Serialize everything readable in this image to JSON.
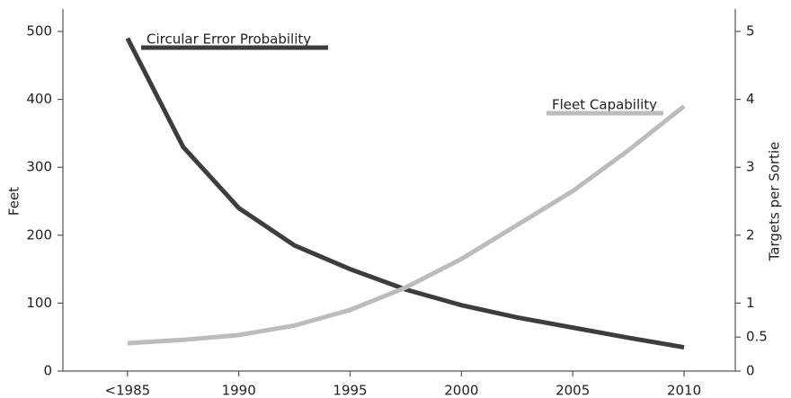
{
  "chart_data": {
    "type": "line",
    "x": [
      1985,
      1987.5,
      1990,
      1992.5,
      1995,
      1997.5,
      2000,
      2002.5,
      2005,
      2007.5,
      2010
    ],
    "xlim": [
      1982.1,
      2012.3
    ],
    "xticks": [
      {
        "value": 1985,
        "label": "<1985"
      },
      1990,
      1995,
      2000,
      2005,
      2010
    ],
    "ylabel": "Feet",
    "ylim": [
      0,
      500
    ],
    "yticks": [
      0,
      100,
      200,
      300,
      400,
      500
    ],
    "y2label": "Targets per Sortie",
    "y2lim": [
      0,
      5
    ],
    "y2ticks": [
      0,
      0.5,
      1,
      2,
      3,
      4,
      5
    ],
    "series": [
      {
        "name": "Circular Error Probability",
        "color": "#3d3d3f",
        "values": [
          490,
          330,
          240,
          185,
          150,
          120,
          97,
          79,
          64,
          49,
          35
        ]
      },
      {
        "name": "Fleet Capability",
        "color": "#bcbcbc",
        "axis": "y2",
        "values": [
          0.41,
          0.46,
          0.53,
          0.67,
          0.9,
          1.23,
          1.65,
          2.15,
          2.65,
          3.25,
          3.9
        ]
      }
    ]
  }
}
